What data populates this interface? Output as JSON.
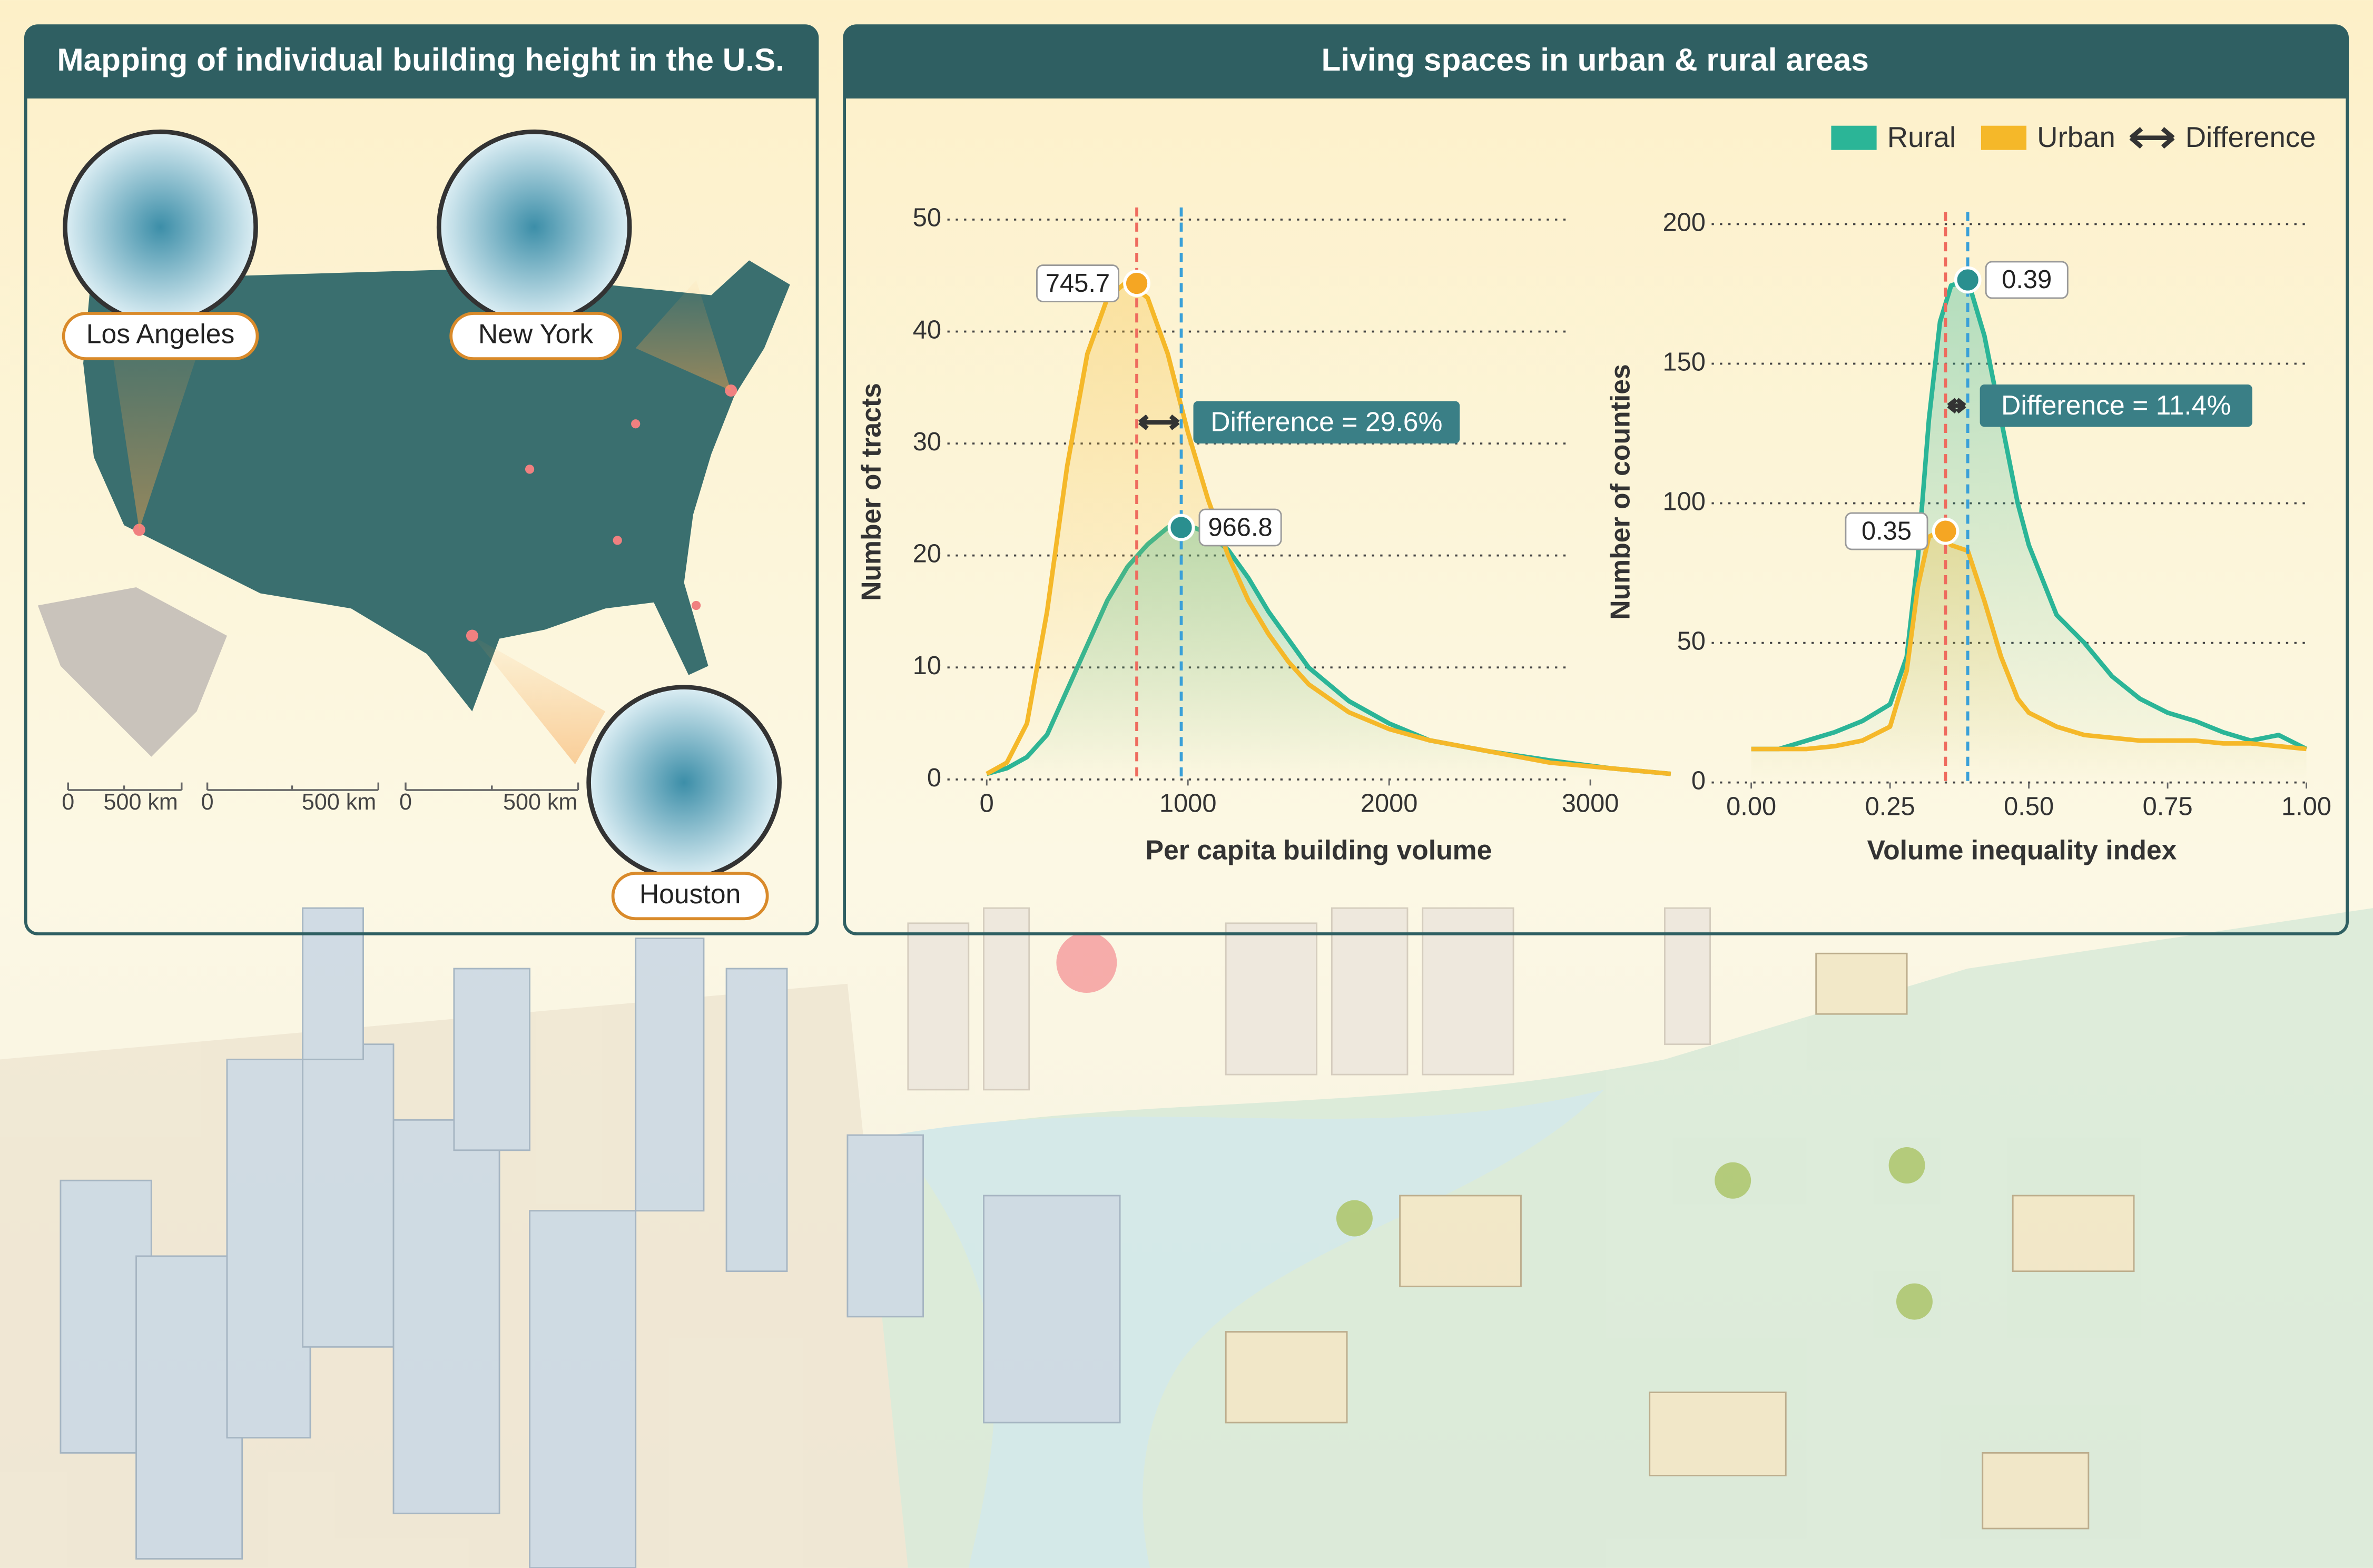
{
  "map_panel": {
    "title": "Mapping of individual building height in the U.S.",
    "cities": [
      "Los Angeles",
      "New York",
      "Houston"
    ],
    "scale_bars": [
      {
        "start": "0",
        "end": "500 km"
      },
      {
        "start": "0",
        "end": "500 km"
      },
      {
        "start": "0",
        "end": "500 km"
      }
    ]
  },
  "charts_panel": {
    "title": "Living spaces in urban & rural areas",
    "legend_extra": "Difference"
  },
  "chart_data": [
    {
      "type": "line",
      "xlabel": "Per capita building volume",
      "ylabel": "Number of tracts",
      "xlim": [
        -100,
        3400
      ],
      "ylim": [
        0,
        50
      ],
      "xticks": [
        0,
        1000,
        2000,
        3000
      ],
      "yticks": [
        0,
        10,
        20,
        30,
        40,
        50
      ],
      "grid": true,
      "legend": "top-right",
      "x": [
        0,
        100,
        200,
        300,
        400,
        500,
        600,
        700,
        800,
        900,
        1000,
        1100,
        1200,
        1300,
        1400,
        1500,
        1600,
        1800,
        2000,
        2200,
        2500,
        2800,
        3100,
        3400
      ],
      "series": [
        {
          "name": "Rural",
          "color": "#2bb597",
          "values": [
            0.5,
            1,
            2,
            4,
            8,
            12,
            16,
            19,
            21,
            22.5,
            22.7,
            22,
            20.5,
            18,
            15,
            12.5,
            10,
            7,
            5,
            3.5,
            2.5,
            1.7,
            1,
            0.5
          ],
          "peak": {
            "x": 966.8,
            "y": 22.5
          },
          "line_color": "#3aa0d8"
        },
        {
          "name": "Urban",
          "color": "#f5b829",
          "values": [
            0.5,
            1.5,
            5,
            15,
            28,
            38,
            43,
            44.5,
            43,
            38,
            31,
            25,
            20,
            16,
            13,
            10.5,
            8.5,
            6,
            4.5,
            3.5,
            2.5,
            1.5,
            1,
            0.5
          ],
          "peak": {
            "x": 745.7,
            "y": 44.3
          },
          "line_color": "#ee6b5e"
        }
      ],
      "annotation": "Difference = 29.6%"
    },
    {
      "type": "line",
      "xlabel": "Volume inequality index",
      "ylabel": "Number of counties",
      "xlim": [
        -0.025,
        1.0
      ],
      "ylim": [
        0,
        200
      ],
      "xticks": [
        {
          "value": 0,
          "label": "0.00"
        },
        0.25,
        {
          "value": 0.5,
          "label": "0.50"
        },
        0.75,
        {
          "value": 1,
          "label": "1.00"
        }
      ],
      "yticks": [
        0,
        50,
        100,
        150,
        200
      ],
      "grid": true,
      "x": [
        0,
        0.05,
        0.1,
        0.15,
        0.2,
        0.25,
        0.28,
        0.3,
        0.32,
        0.34,
        0.36,
        0.39,
        0.42,
        0.45,
        0.48,
        0.5,
        0.55,
        0.6,
        0.65,
        0.7,
        0.75,
        0.8,
        0.85,
        0.9,
        0.95,
        1.0
      ],
      "series": [
        {
          "name": "Rural",
          "color": "#2bb597",
          "values": [
            12,
            12,
            15,
            18,
            22,
            28,
            45,
            80,
            130,
            165,
            178,
            180,
            160,
            130,
            100,
            85,
            60,
            50,
            38,
            30,
            25,
            22,
            18,
            15,
            17,
            12
          ],
          "peak": {
            "x": 0.39,
            "y": 180
          },
          "line_color": "#3aa0d8"
        },
        {
          "name": "Urban",
          "color": "#f5b829",
          "values": [
            12,
            12,
            12,
            13,
            15,
            20,
            40,
            70,
            88,
            90,
            85,
            83,
            65,
            45,
            30,
            25,
            20,
            17,
            16,
            15,
            15,
            15,
            14,
            14,
            13,
            12
          ],
          "peak": {
            "x": 0.35,
            "y": 90
          },
          "line_color": "#ee6b5e"
        }
      ],
      "annotation": "Difference = 11.4%"
    }
  ]
}
